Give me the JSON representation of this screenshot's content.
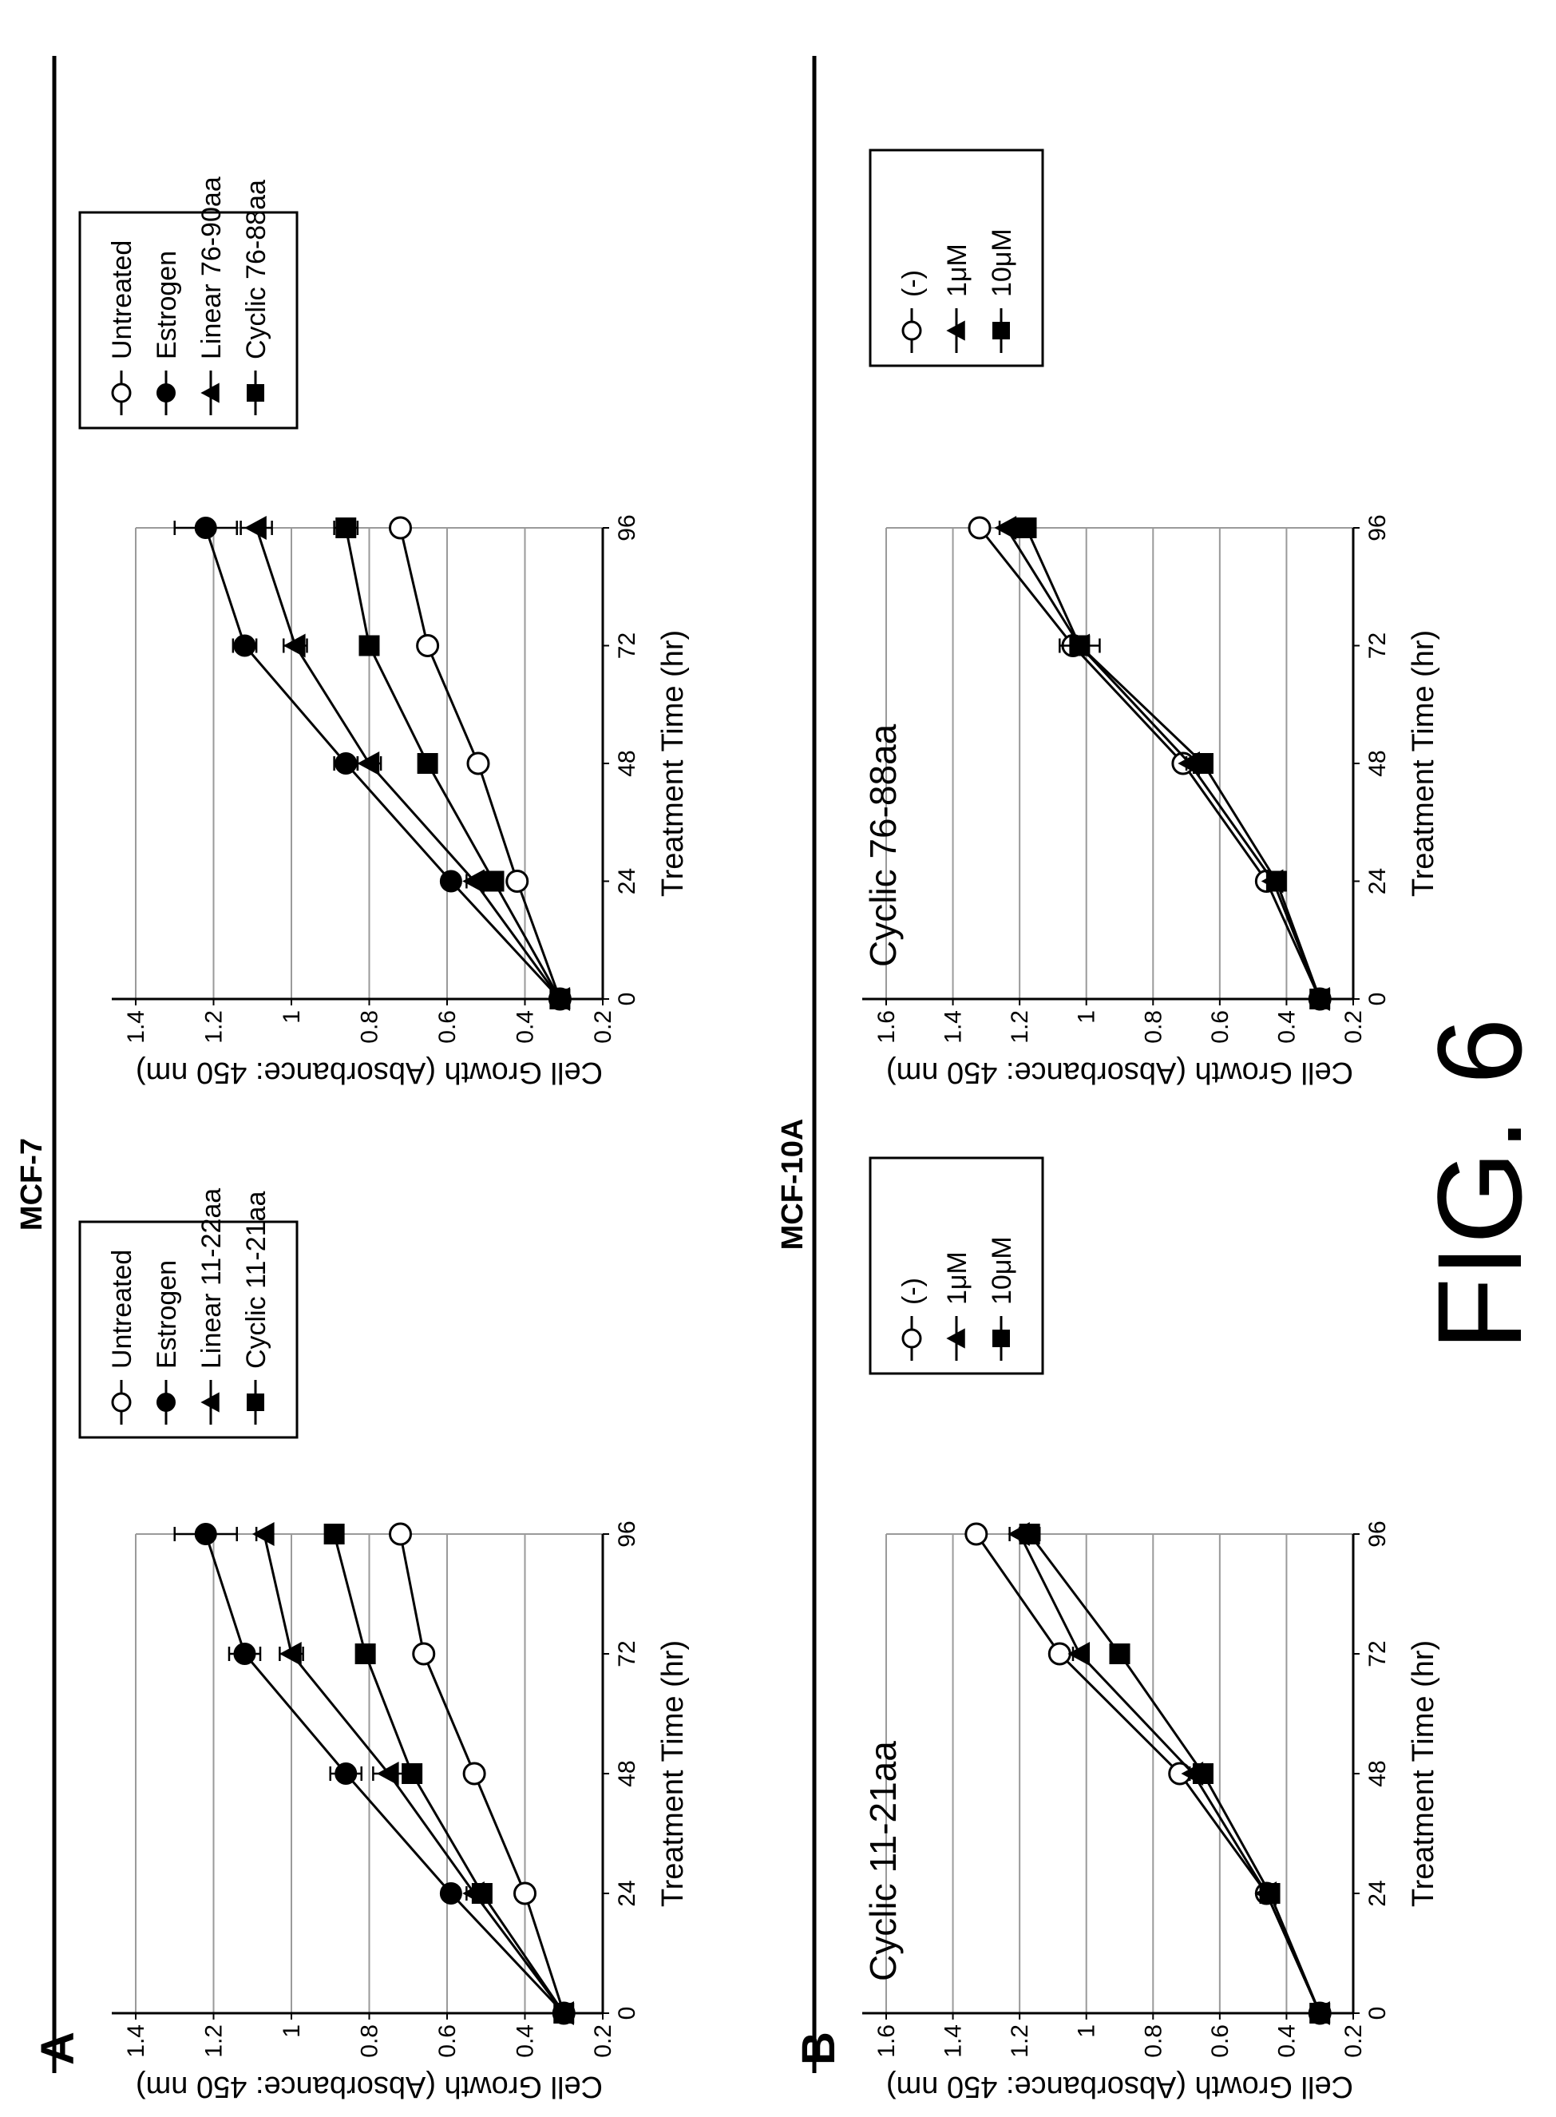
{
  "figure": {
    "label": "FIG. 6",
    "panel_a_letter": "A",
    "panel_b_letter": "B",
    "section_a_title": "MCF-7",
    "section_b_title": "MCF-10A"
  },
  "colors": {
    "ink": "#000000",
    "grid": "#9a9a9a",
    "background": "#ffffff"
  },
  "chart_data": [
    {
      "id": "a1",
      "type": "line",
      "title": "",
      "annotation": "",
      "xlabel": "Treatment Time (hr)",
      "ylabel": "Cell Growth (Absorbance: 450 nm)",
      "x": [
        0,
        24,
        48,
        72,
        96
      ],
      "x_ticks": [
        "0",
        "24",
        "48",
        "72",
        "96"
      ],
      "ylim": [
        0.2,
        1.4
      ],
      "y_ticks": [
        "0.2",
        "0.4",
        "0.6",
        "0.8",
        "1",
        "1.2",
        "1.4"
      ],
      "grid": true,
      "legend_position": "right",
      "series": [
        {
          "name": "Untreated",
          "marker": "open-circle",
          "values": [
            0.3,
            0.4,
            0.53,
            0.66,
            0.72
          ],
          "errors": [
            0.02,
            0.01,
            0.01,
            0.01,
            0.01
          ]
        },
        {
          "name": "Estrogen",
          "marker": "filled-circle",
          "values": [
            0.3,
            0.59,
            0.86,
            1.12,
            1.22
          ],
          "errors": [
            0.02,
            0.02,
            0.04,
            0.04,
            0.08
          ]
        },
        {
          "name": "Linear 11-22aa",
          "marker": "triangle",
          "values": [
            0.3,
            0.53,
            0.75,
            1.0,
            1.07
          ],
          "errors": [
            0.02,
            0.02,
            0.04,
            0.03,
            0.02
          ]
        },
        {
          "name": "Cyclic 11-21aa",
          "marker": "square",
          "values": [
            0.3,
            0.51,
            0.69,
            0.81,
            0.89
          ],
          "errors": [
            0.02,
            0.02,
            0.02,
            0.02,
            0.01
          ]
        }
      ]
    },
    {
      "id": "a2",
      "type": "line",
      "title": "",
      "annotation": "",
      "xlabel": "Treatment Time (hr)",
      "ylabel": "Cell Growth (Absorbance: 450 nm)",
      "x": [
        0,
        24,
        48,
        72,
        96
      ],
      "x_ticks": [
        "0",
        "24",
        "48",
        "72",
        "96"
      ],
      "ylim": [
        0.2,
        1.4
      ],
      "y_ticks": [
        "0.2",
        "0.4",
        "0.6",
        "0.8",
        "1",
        "1.2",
        "1.4"
      ],
      "grid": true,
      "legend_position": "right",
      "series": [
        {
          "name": "Untreated",
          "marker": "open-circle",
          "values": [
            0.31,
            0.42,
            0.52,
            0.65,
            0.72
          ],
          "errors": [
            0.02,
            0.01,
            0.01,
            0.01,
            0.01
          ]
        },
        {
          "name": "Estrogen",
          "marker": "filled-circle",
          "values": [
            0.31,
            0.59,
            0.86,
            1.12,
            1.22
          ],
          "errors": [
            0.02,
            0.02,
            0.03,
            0.03,
            0.08
          ]
        },
        {
          "name": "Linear 76-90aa",
          "marker": "triangle",
          "values": [
            0.31,
            0.53,
            0.8,
            0.99,
            1.09
          ],
          "errors": [
            0.02,
            0.02,
            0.03,
            0.03,
            0.04
          ]
        },
        {
          "name": "Cyclic 76-88aa",
          "marker": "square",
          "values": [
            0.31,
            0.48,
            0.65,
            0.8,
            0.86
          ],
          "errors": [
            0.02,
            0.02,
            0.02,
            0.02,
            0.03
          ]
        }
      ]
    },
    {
      "id": "b1",
      "type": "line",
      "title": "",
      "annotation": "Cyclic 11-21aa",
      "xlabel": "Treatment Time (hr)",
      "ylabel": "Cell Growth (Absorbance: 450 nm)",
      "x": [
        0,
        24,
        48,
        72,
        96
      ],
      "x_ticks": [
        "0",
        "24",
        "48",
        "72",
        "96"
      ],
      "ylim": [
        0.2,
        1.6
      ],
      "y_ticks": [
        "0.2",
        "0.4",
        "0.6",
        "0.8",
        "1",
        "1.2",
        "1.4",
        "1.6"
      ],
      "grid": true,
      "legend_position": "top-right",
      "series": [
        {
          "name": "(-)",
          "marker": "open-circle",
          "values": [
            0.3,
            0.46,
            0.72,
            1.08,
            1.33
          ],
          "errors": [
            0.01,
            0.01,
            0.01,
            0.02,
            0.02
          ]
        },
        {
          "name": "1μM",
          "marker": "triangle",
          "values": [
            0.3,
            0.46,
            0.68,
            1.02,
            1.2
          ],
          "errors": [
            0.01,
            0.01,
            0.01,
            0.02,
            0.03
          ]
        },
        {
          "name": "10μM",
          "marker": "square",
          "values": [
            0.3,
            0.45,
            0.65,
            0.9,
            1.17
          ],
          "errors": [
            0.01,
            0.01,
            0.01,
            0.01,
            0.03
          ]
        }
      ]
    },
    {
      "id": "b2",
      "type": "line",
      "title": "",
      "annotation": "Cyclic 76-88aa",
      "xlabel": "Treatment Time (hr)",
      "ylabel": "Cell Growth (Absorbance: 450 nm)",
      "x": [
        0,
        24,
        48,
        72,
        96
      ],
      "x_ticks": [
        "0",
        "24",
        "48",
        "72",
        "96"
      ],
      "ylim": [
        0.2,
        1.6
      ],
      "y_ticks": [
        "0.2",
        "0.4",
        "0.6",
        "0.8",
        "1",
        "1.2",
        "1.4",
        "1.6"
      ],
      "grid": true,
      "legend_position": "top-right",
      "series": [
        {
          "name": "(-)",
          "marker": "open-circle",
          "values": [
            0.3,
            0.46,
            0.71,
            1.04,
            1.32
          ],
          "errors": [
            0.01,
            0.01,
            0.01,
            0.02,
            0.02
          ]
        },
        {
          "name": "1μM",
          "marker": "triangle",
          "values": [
            0.3,
            0.44,
            0.69,
            1.02,
            1.24
          ],
          "errors": [
            0.01,
            0.01,
            0.01,
            0.02,
            0.02
          ]
        },
        {
          "name": "10μM",
          "marker": "square",
          "values": [
            0.3,
            0.43,
            0.65,
            1.02,
            1.18
          ],
          "errors": [
            0.01,
            0.01,
            0.01,
            0.06,
            0.02
          ]
        }
      ]
    }
  ]
}
